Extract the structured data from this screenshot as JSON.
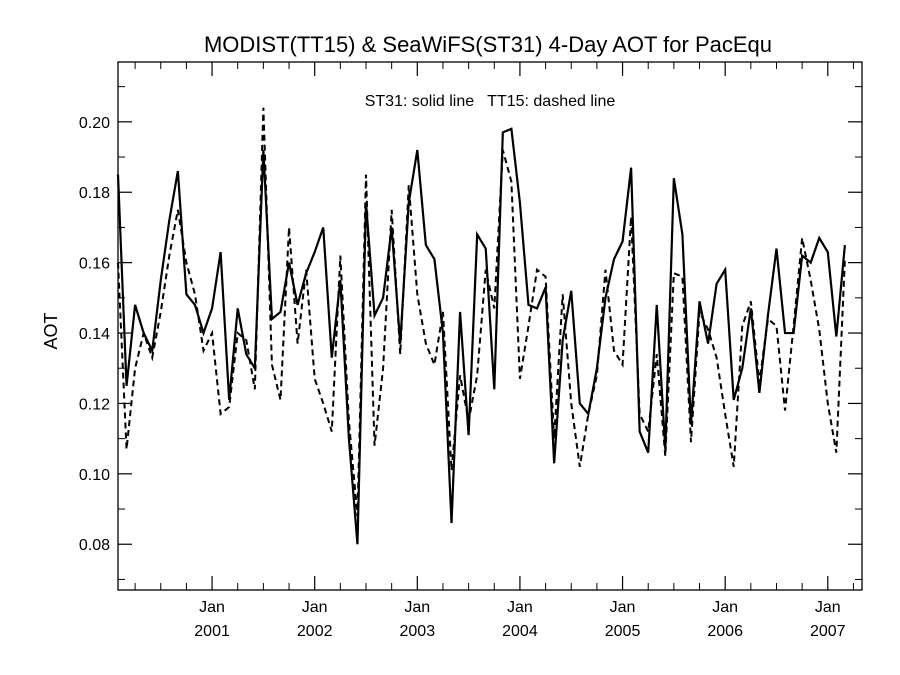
{
  "chart_data": {
    "type": "line",
    "title": "MODIST(TT15) & SeaWiFS(ST31) 4-Day AOT for PacEqu",
    "annotation": "ST31: solid line   TT15: dashed line",
    "xlabel": "",
    "ylabel": "AOT",
    "ylim": [
      0.067,
      0.217
    ],
    "y_ticks": [
      "0.08",
      "0.10",
      "0.12",
      "0.14",
      "0.16",
      "0.18",
      "0.20"
    ],
    "x_range": [
      "2000-02",
      "2007-05"
    ],
    "x_ticks": [
      {
        "month": "Jan",
        "year": "2001",
        "date": "2001-01"
      },
      {
        "month": "Jan",
        "year": "2002",
        "date": "2002-01"
      },
      {
        "month": "Jan",
        "year": "2003",
        "date": "2003-01"
      },
      {
        "month": "Jan",
        "year": "2004",
        "date": "2004-01"
      },
      {
        "month": "Jan",
        "year": "2005",
        "date": "2005-01"
      },
      {
        "month": "Jan",
        "year": "2006",
        "date": "2006-01"
      },
      {
        "month": "Jan",
        "year": "2007",
        "date": "2007-01"
      }
    ],
    "grid": false,
    "series": [
      {
        "style": "solid",
        "points": [
          [
            "2000-02",
            0.185
          ],
          [
            "2000-03",
            0.125
          ],
          [
            "2000-04",
            0.148
          ],
          [
            "2000-05",
            0.14
          ],
          [
            "2000-06",
            0.135
          ],
          [
            "2000-07",
            0.155
          ],
          [
            "2000-08",
            0.172
          ],
          [
            "2000-09",
            0.186
          ],
          [
            "2000-10",
            0.151
          ],
          [
            "2000-11",
            0.148
          ],
          [
            "2000-12",
            0.14
          ],
          [
            "2001-01",
            0.147
          ],
          [
            "2001-02",
            0.163
          ],
          [
            "2001-03",
            0.121
          ],
          [
            "2001-04",
            0.147
          ],
          [
            "2001-05",
            0.134
          ],
          [
            "2001-06",
            0.13
          ],
          [
            "2001-07",
            0.192
          ],
          [
            "2001-08",
            0.144
          ],
          [
            "2001-09",
            0.146
          ],
          [
            "2001-10",
            0.16
          ],
          [
            "2001-11",
            0.148
          ],
          [
            "2001-12",
            0.157
          ],
          [
            "2002-01",
            0.163
          ],
          [
            "2002-02",
            0.17
          ],
          [
            "2002-03",
            0.133
          ],
          [
            "2002-04",
            0.155
          ],
          [
            "2002-05",
            0.11
          ],
          [
            "2002-06",
            0.08
          ],
          [
            "2002-07",
            0.177
          ],
          [
            "2002-08",
            0.145
          ],
          [
            "2002-09",
            0.15
          ],
          [
            "2002-10",
            0.17
          ],
          [
            "2002-11",
            0.137
          ],
          [
            "2002-12",
            0.177
          ],
          [
            "2003-01",
            0.192
          ],
          [
            "2003-02",
            0.165
          ],
          [
            "2003-03",
            0.161
          ],
          [
            "2003-04",
            0.14
          ],
          [
            "2003-05",
            0.086
          ],
          [
            "2003-06",
            0.146
          ],
          [
            "2003-07",
            0.111
          ],
          [
            "2003-08",
            0.168
          ],
          [
            "2003-09",
            0.164
          ],
          [
            "2003-10",
            0.124
          ],
          [
            "2003-11",
            0.197
          ],
          [
            "2003-12",
            0.198
          ],
          [
            "2004-01",
            0.177
          ],
          [
            "2004-02",
            0.148
          ],
          [
            "2004-03",
            0.147
          ],
          [
            "2004-04",
            0.153
          ],
          [
            "2004-05",
            0.103
          ],
          [
            "2004-06",
            0.138
          ],
          [
            "2004-07",
            0.152
          ],
          [
            "2004-08",
            0.12
          ],
          [
            "2004-09",
            0.117
          ],
          [
            "2004-10",
            0.13
          ],
          [
            "2004-11",
            0.15
          ],
          [
            "2004-12",
            0.161
          ],
          [
            "2005-01",
            0.166
          ],
          [
            "2005-02",
            0.187
          ],
          [
            "2005-03",
            0.112
          ],
          [
            "2005-04",
            0.106
          ],
          [
            "2005-05",
            0.148
          ],
          [
            "2005-06",
            0.107
          ],
          [
            "2005-07",
            0.184
          ],
          [
            "2005-08",
            0.168
          ],
          [
            "2005-09",
            0.114
          ],
          [
            "2005-10",
            0.149
          ],
          [
            "2005-11",
            0.137
          ],
          [
            "2005-12",
            0.154
          ],
          [
            "2006-01",
            0.158
          ],
          [
            "2006-02",
            0.121
          ],
          [
            "2006-03",
            0.13
          ],
          [
            "2006-04",
            0.147
          ],
          [
            "2006-05",
            0.123
          ],
          [
            "2006-06",
            0.145
          ],
          [
            "2006-07",
            0.164
          ],
          [
            "2006-08",
            0.14
          ],
          [
            "2006-09",
            0.14
          ],
          [
            "2006-10",
            0.162
          ],
          [
            "2006-11",
            0.16
          ],
          [
            "2006-12",
            0.167
          ],
          [
            "2007-01",
            0.163
          ],
          [
            "2007-02",
            0.139
          ],
          [
            "2007-03",
            0.165
          ]
        ]
      },
      {
        "style": "dashed",
        "points": [
          [
            "2000-02",
            0.16
          ],
          [
            "2000-03",
            0.107
          ],
          [
            "2000-04",
            0.13
          ],
          [
            "2000-05",
            0.14
          ],
          [
            "2000-06",
            0.133
          ],
          [
            "2000-07",
            0.146
          ],
          [
            "2000-08",
            0.162
          ],
          [
            "2000-09",
            0.175
          ],
          [
            "2000-10",
            0.16
          ],
          [
            "2000-11",
            0.151
          ],
          [
            "2000-12",
            0.135
          ],
          [
            "2001-01",
            0.14
          ],
          [
            "2001-02",
            0.117
          ],
          [
            "2001-03",
            0.119
          ],
          [
            "2001-04",
            0.14
          ],
          [
            "2001-05",
            0.138
          ],
          [
            "2001-06",
            0.124
          ],
          [
            "2001-07",
            0.204
          ],
          [
            "2001-08",
            0.131
          ],
          [
            "2001-09",
            0.121
          ],
          [
            "2001-10",
            0.17
          ],
          [
            "2001-11",
            0.137
          ],
          [
            "2001-12",
            0.158
          ],
          [
            "2002-01",
            0.127
          ],
          [
            "2002-02",
            0.12
          ],
          [
            "2002-03",
            0.112
          ],
          [
            "2002-04",
            0.162
          ],
          [
            "2002-05",
            0.115
          ],
          [
            "2002-06",
            0.088
          ],
          [
            "2002-07",
            0.185
          ],
          [
            "2002-08",
            0.108
          ],
          [
            "2002-09",
            0.13
          ],
          [
            "2002-10",
            0.175
          ],
          [
            "2002-11",
            0.134
          ],
          [
            "2002-12",
            0.182
          ],
          [
            "2003-01",
            0.151
          ],
          [
            "2003-02",
            0.137
          ],
          [
            "2003-03",
            0.131
          ],
          [
            "2003-04",
            0.146
          ],
          [
            "2003-05",
            0.101
          ],
          [
            "2003-06",
            0.128
          ],
          [
            "2003-07",
            0.115
          ],
          [
            "2003-08",
            0.128
          ],
          [
            "2003-09",
            0.158
          ],
          [
            "2003-10",
            0.147
          ],
          [
            "2003-11",
            0.192
          ],
          [
            "2003-12",
            0.183
          ],
          [
            "2004-01",
            0.127
          ],
          [
            "2004-02",
            0.142
          ],
          [
            "2004-03",
            0.158
          ],
          [
            "2004-04",
            0.156
          ],
          [
            "2004-05",
            0.11
          ],
          [
            "2004-06",
            0.151
          ],
          [
            "2004-07",
            0.12
          ],
          [
            "2004-08",
            0.102
          ],
          [
            "2004-09",
            0.117
          ],
          [
            "2004-10",
            0.128
          ],
          [
            "2004-11",
            0.158
          ],
          [
            "2004-12",
            0.135
          ],
          [
            "2005-01",
            0.131
          ],
          [
            "2005-02",
            0.173
          ],
          [
            "2005-03",
            0.117
          ],
          [
            "2005-04",
            0.112
          ],
          [
            "2005-05",
            0.134
          ],
          [
            "2005-06",
            0.105
          ],
          [
            "2005-07",
            0.157
          ],
          [
            "2005-08",
            0.156
          ],
          [
            "2005-09",
            0.109
          ],
          [
            "2005-10",
            0.146
          ],
          [
            "2005-11",
            0.141
          ],
          [
            "2005-12",
            0.133
          ],
          [
            "2006-01",
            0.117
          ],
          [
            "2006-02",
            0.102
          ],
          [
            "2006-03",
            0.142
          ],
          [
            "2006-04",
            0.149
          ],
          [
            "2006-05",
            0.126
          ],
          [
            "2006-06",
            0.144
          ],
          [
            "2006-07",
            0.142
          ],
          [
            "2006-08",
            0.118
          ],
          [
            "2006-09",
            0.142
          ],
          [
            "2006-10",
            0.167
          ],
          [
            "2006-11",
            0.155
          ],
          [
            "2006-12",
            0.141
          ],
          [
            "2007-01",
            0.12
          ],
          [
            "2007-02",
            0.106
          ],
          [
            "2007-03",
            0.161
          ]
        ]
      }
    ]
  }
}
